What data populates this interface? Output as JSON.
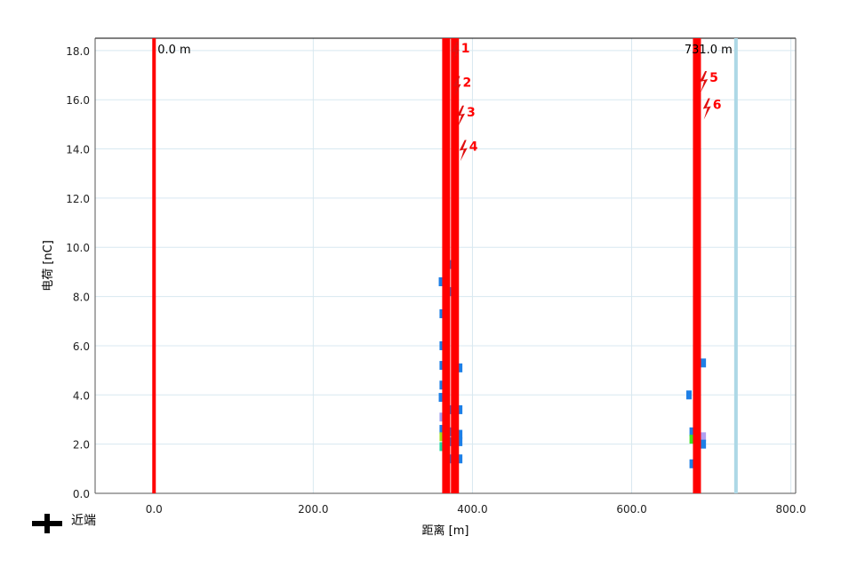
{
  "chart_data": {
    "type": "scatter",
    "xlabel": "距离 [m]",
    "ylabel": "电荷 [nC]",
    "xlim": [
      -74,
      806
    ],
    "ylim": [
      0,
      18.5
    ],
    "x_ticks": [
      "0.0",
      "200.0",
      "400.0",
      "600.0",
      "800.0"
    ],
    "y_ticks": [
      "0.0",
      "2.0",
      "4.0",
      "6.0",
      "8.0",
      "10.0",
      "12.0",
      "14.0",
      "16.0",
      "18.0"
    ],
    "grid": true,
    "markers": [
      {
        "x": 0,
        "label": "0.0 m",
        "color": "#ff0000"
      },
      {
        "x": 367,
        "label": "",
        "color": "#ff0000"
      },
      {
        "x": 378,
        "label": "",
        "color": "#ff0000"
      },
      {
        "x": 682,
        "label": "",
        "color": "#ff0000"
      },
      {
        "x": 731,
        "label": "731.0 m",
        "color": "#add8e6"
      }
    ],
    "lightning": [
      {
        "x": 378,
        "y": 18.0,
        "label": "1"
      },
      {
        "x": 380,
        "y": 16.6,
        "label": "2"
      },
      {
        "x": 385,
        "y": 15.4,
        "label": "3"
      },
      {
        "x": 388,
        "y": 14.0,
        "label": "4"
      },
      {
        "x": 690,
        "y": 16.8,
        "label": "5"
      },
      {
        "x": 694,
        "y": 15.7,
        "label": "6"
      }
    ],
    "pulses": [
      {
        "x": 361,
        "y": 8.6,
        "color": "#1e7fe6"
      },
      {
        "x": 362,
        "y": 7.3,
        "color": "#1e7fe6"
      },
      {
        "x": 362,
        "y": 6.0,
        "color": "#1e7fe6"
      },
      {
        "x": 362,
        "y": 5.2,
        "color": "#1e7fe6"
      },
      {
        "x": 362,
        "y": 4.4,
        "color": "#1e7fe6"
      },
      {
        "x": 361,
        "y": 3.9,
        "color": "#1e7fe6"
      },
      {
        "x": 362,
        "y": 3.1,
        "color": "#9f9ff0"
      },
      {
        "x": 362,
        "y": 2.6,
        "color": "#1e7fe6"
      },
      {
        "x": 362,
        "y": 2.3,
        "color": "#a0e020"
      },
      {
        "x": 362,
        "y": 1.9,
        "color": "#20d8a0"
      },
      {
        "x": 372,
        "y": 9.3,
        "color": "#1e7fe6"
      },
      {
        "x": 372,
        "y": 8.2,
        "color": "#1e7fe6"
      },
      {
        "x": 372,
        "y": 3.4,
        "color": "#1e7fe6"
      },
      {
        "x": 372,
        "y": 2.5,
        "color": "#1e7fe6"
      },
      {
        "x": 372,
        "y": 2.1,
        "color": "#1e7fe6"
      },
      {
        "x": 372,
        "y": 1.4,
        "color": "#1e7fe6"
      },
      {
        "x": 384,
        "y": 5.1,
        "color": "#1e7fe6"
      },
      {
        "x": 384,
        "y": 3.4,
        "color": "#1e7fe6"
      },
      {
        "x": 384,
        "y": 2.4,
        "color": "#1e7fe6"
      },
      {
        "x": 384,
        "y": 2.1,
        "color": "#1e7fe6"
      },
      {
        "x": 384,
        "y": 1.4,
        "color": "#1e7fe6"
      },
      {
        "x": 672,
        "y": 4.0,
        "color": "#1e7fe6"
      },
      {
        "x": 676,
        "y": 2.5,
        "color": "#1e7fe6"
      },
      {
        "x": 676,
        "y": 2.2,
        "color": "#40e020"
      },
      {
        "x": 676,
        "y": 1.2,
        "color": "#1e7fe6"
      },
      {
        "x": 690,
        "y": 5.3,
        "color": "#1e7fe6"
      },
      {
        "x": 690,
        "y": 2.3,
        "color": "#b0a0f0"
      },
      {
        "x": 690,
        "y": 2.0,
        "color": "#1e7fe6"
      }
    ],
    "legend": [
      {
        "symbol": "plus",
        "label": "近端"
      }
    ]
  }
}
